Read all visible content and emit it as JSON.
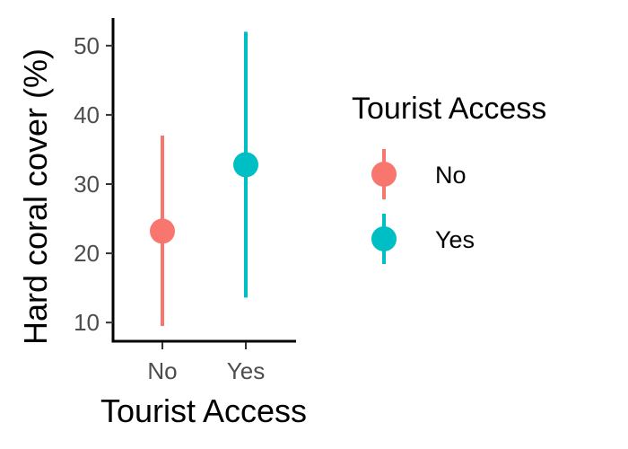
{
  "chart_data": {
    "type": "scatter",
    "subtype": "point-range",
    "xlabel": "Tourist Access",
    "ylabel": "Hard coral cover (%)",
    "categories": [
      "No",
      "Yes"
    ],
    "yticks": [
      10,
      20,
      30,
      40,
      50
    ],
    "ylim": [
      7.3,
      54
    ],
    "grid": false,
    "legend": {
      "title": "Tourist Access",
      "placement": "right",
      "entries": [
        "No",
        "Yes"
      ]
    },
    "series": [
      {
        "name": "No",
        "category": "No",
        "value": 23.2,
        "lower": 9.5,
        "upper": 37.0,
        "color": "#F8766D"
      },
      {
        "name": "Yes",
        "category": "Yes",
        "value": 32.8,
        "lower": 13.6,
        "upper": 52.0,
        "color": "#00BFC4"
      }
    ]
  }
}
